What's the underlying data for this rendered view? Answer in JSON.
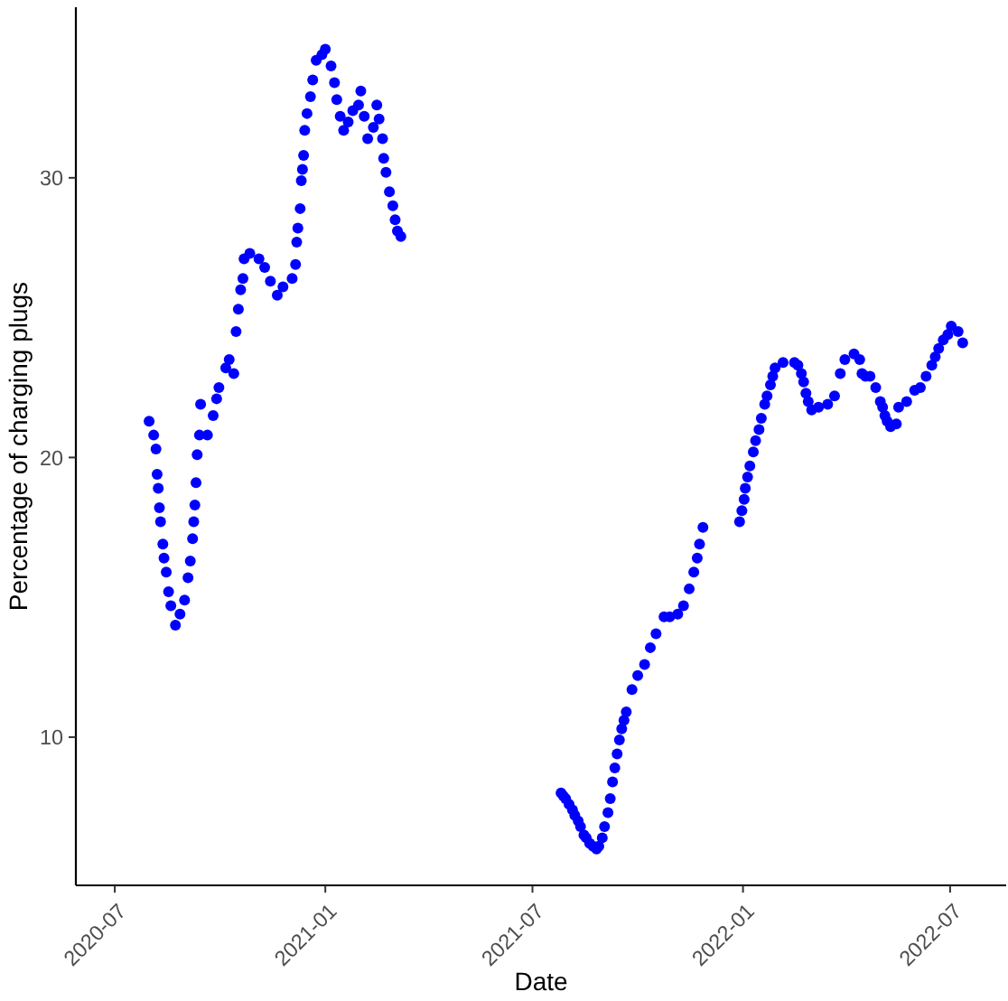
{
  "chart_data": {
    "type": "scatter",
    "xlabel": "Date",
    "ylabel": "Percentage of charging plugs",
    "color": "#0000ff",
    "marker": "circle",
    "x": [
      "2020-07-31",
      "2020-08-04",
      "2020-08-06",
      "2020-08-07",
      "2020-08-08",
      "2020-08-09",
      "2020-08-10",
      "2020-08-12",
      "2020-08-13",
      "2020-08-15",
      "2020-08-17",
      "2020-08-19",
      "2020-08-23",
      "2020-08-27",
      "2020-08-31",
      "2020-09-03",
      "2020-09-05",
      "2020-09-07",
      "2020-09-08",
      "2020-09-09",
      "2020-09-10",
      "2020-09-11",
      "2020-09-13",
      "2020-09-14",
      "2020-09-20",
      "2020-09-25",
      "2020-09-28",
      "2020-09-30",
      "2020-10-06",
      "2020-10-09",
      "2020-10-13",
      "2020-10-15",
      "2020-10-17",
      "2020-10-19",
      "2020-10-21",
      "2020-10-22",
      "2020-10-27",
      "2020-11-04",
      "2020-11-09",
      "2020-11-14",
      "2020-11-20",
      "2020-11-25",
      "2020-12-03",
      "2020-12-06",
      "2020-12-07",
      "2020-12-08",
      "2020-12-10",
      "2020-12-11",
      "2020-12-12",
      "2020-12-13",
      "2020-12-14",
      "2020-12-16",
      "2020-12-19",
      "2020-12-21",
      "2020-12-24",
      "2020-12-29",
      "2021-01-01",
      "2021-01-06",
      "2021-01-09",
      "2021-01-11",
      "2021-01-14",
      "2021-01-17",
      "2021-01-21",
      "2021-01-25",
      "2021-01-30",
      "2021-02-01",
      "2021-02-04",
      "2021-02-07",
      "2021-02-12",
      "2021-02-15",
      "2021-02-17",
      "2021-02-20",
      "2021-02-21",
      "2021-02-23",
      "2021-02-26",
      "2021-03-01",
      "2021-03-03",
      "2021-03-05",
      "2021-03-08",
      "2021-07-26",
      "2021-07-28",
      "2021-07-30",
      "2021-08-02",
      "2021-08-05",
      "2021-08-07",
      "2021-08-10",
      "2021-08-12",
      "2021-08-15",
      "2021-08-17",
      "2021-08-20",
      "2021-08-23",
      "2021-08-26",
      "2021-08-28",
      "2021-08-31",
      "2021-09-02",
      "2021-09-05",
      "2021-09-07",
      "2021-09-09",
      "2021-09-11",
      "2021-09-13",
      "2021-09-15",
      "2021-09-17",
      "2021-09-19",
      "2021-09-21",
      "2021-09-26",
      "2021-10-01",
      "2021-10-07",
      "2021-10-12",
      "2021-10-17",
      "2021-10-24",
      "2021-10-29",
      "2021-11-05",
      "2021-11-10",
      "2021-11-15",
      "2021-11-19",
      "2021-11-22",
      "2021-11-24",
      "2021-11-27",
      "2021-12-29",
      "2021-12-31",
      "2022-01-02",
      "2022-01-03",
      "2022-01-05",
      "2022-01-07",
      "2022-01-10",
      "2022-01-12",
      "2022-01-15",
      "2022-01-17",
      "2022-01-20",
      "2022-01-22",
      "2022-01-25",
      "2022-01-27",
      "2022-01-29",
      "2022-02-05",
      "2022-02-15",
      "2022-02-18",
      "2022-02-21",
      "2022-02-23",
      "2022-02-25",
      "2022-02-27",
      "2022-03-02",
      "2022-03-08",
      "2022-03-16",
      "2022-03-22",
      "2022-03-27",
      "2022-03-31",
      "2022-04-08",
      "2022-04-13",
      "2022-04-15",
      "2022-04-18",
      "2022-04-22",
      "2022-04-27",
      "2022-05-01",
      "2022-05-03",
      "2022-05-05",
      "2022-05-07",
      "2022-05-10",
      "2022-05-15",
      "2022-05-17",
      "2022-05-24",
      "2022-05-31",
      "2022-06-05",
      "2022-06-10",
      "2022-06-15",
      "2022-06-18",
      "2022-06-21",
      "2022-06-25",
      "2022-06-29",
      "2022-07-02",
      "2022-07-08",
      "2022-07-12"
    ],
    "values": [
      21.3,
      20.8,
      20.3,
      19.4,
      18.9,
      18.2,
      17.7,
      16.9,
      16.4,
      15.9,
      15.2,
      14.7,
      14.0,
      14.4,
      14.9,
      15.7,
      16.3,
      17.1,
      17.7,
      18.3,
      19.1,
      20.1,
      20.8,
      21.9,
      20.8,
      21.5,
      22.1,
      22.5,
      23.2,
      23.5,
      23.0,
      24.5,
      25.3,
      26.0,
      26.4,
      27.1,
      27.3,
      27.1,
      26.8,
      26.3,
      25.8,
      26.1,
      26.4,
      26.9,
      27.7,
      28.2,
      28.9,
      29.9,
      30.3,
      30.8,
      31.7,
      32.3,
      32.9,
      33.5,
      34.2,
      34.4,
      34.6,
      34.0,
      33.4,
      32.8,
      32.2,
      31.7,
      32.0,
      32.4,
      32.6,
      33.1,
      32.2,
      31.4,
      31.8,
      32.6,
      32.1,
      31.4,
      30.7,
      30.2,
      29.5,
      29.0,
      28.5,
      28.1,
      27.9,
      8.0,
      7.9,
      7.8,
      7.6,
      7.4,
      7.2,
      7.0,
      6.8,
      6.5,
      6.4,
      6.2,
      6.1,
      6.0,
      6.1,
      6.4,
      6.8,
      7.3,
      7.8,
      8.4,
      8.9,
      9.4,
      9.9,
      10.3,
      10.6,
      10.9,
      11.7,
      12.2,
      12.6,
      13.2,
      13.7,
      14.3,
      14.3,
      14.4,
      14.7,
      15.3,
      15.9,
      16.4,
      16.9,
      17.5,
      17.7,
      18.1,
      18.5,
      18.9,
      19.3,
      19.7,
      20.2,
      20.6,
      21.0,
      21.4,
      21.9,
      22.2,
      22.6,
      22.9,
      23.2,
      23.4,
      23.4,
      23.3,
      23.0,
      22.7,
      22.3,
      22.0,
      21.7,
      21.8,
      21.9,
      22.2,
      23.0,
      23.5,
      23.7,
      23.5,
      23.0,
      22.9,
      22.9,
      22.5,
      22.0,
      21.8,
      21.5,
      21.3,
      21.1,
      21.2,
      21.8,
      22.0,
      22.4,
      22.5,
      22.9,
      23.3,
      23.6,
      23.9,
      24.2,
      24.4,
      24.7,
      24.5,
      24.1
    ],
    "xlim": [
      "2020-05-28",
      "2022-08-19"
    ],
    "xticks": [
      "2020-07",
      "2021-01",
      "2021-07",
      "2022-01",
      "2022-07"
    ],
    "ylim": [
      4.7,
      36.1
    ],
    "yticks": [
      10,
      20,
      30
    ]
  }
}
